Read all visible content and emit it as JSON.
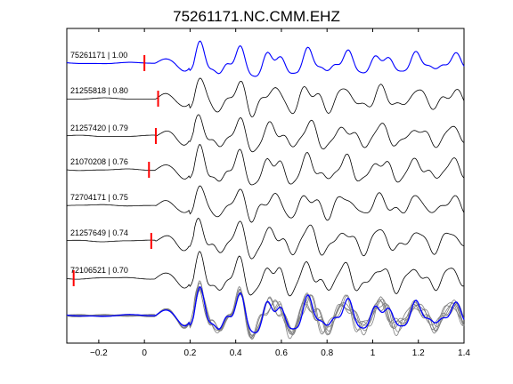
{
  "title": "75261171.NC.CMM.EHZ",
  "chart_data": {
    "type": "line",
    "title": "75261171.NC.CMM.EHZ",
    "xlabel": "",
    "ylabel": "",
    "xlim": [
      -0.34,
      1.4
    ],
    "xticks": [
      -0.2,
      0,
      0.2,
      0.4,
      0.6,
      0.8,
      1,
      1.2,
      1.4
    ],
    "xtick_labels": [
      "−0.2",
      "0",
      "0.2",
      "0.4",
      "0.6",
      "0.8",
      "1",
      "1.2",
      "1.4"
    ],
    "grid": false,
    "series": [
      {
        "name": "75261171 | 1.00",
        "label": "75261171 | 1.00",
        "pick_time": 0.0,
        "color": "#0000ff"
      },
      {
        "name": "21255818 | 0.80",
        "label": "21255818 | 0.80",
        "pick_time": 0.06,
        "color": "#000000"
      },
      {
        "name": "21257420 | 0.79",
        "label": "21257420 | 0.79",
        "pick_time": 0.05,
        "color": "#000000"
      },
      {
        "name": "21070208 | 0.76",
        "label": "21070208 | 0.76",
        "pick_time": 0.02,
        "color": "#000000"
      },
      {
        "name": "72704171 | 0.75",
        "label": "72704171 | 0.75",
        "pick_time": null,
        "color": "#000000"
      },
      {
        "name": "21257649 | 0.74",
        "label": "21257649 | 0.74",
        "pick_time": 0.03,
        "color": "#000000"
      },
      {
        "name": "72106521 | 0.70",
        "label": "72106521 | 0.70",
        "pick_time": -0.31,
        "color": "#000000"
      }
    ],
    "stack": {
      "description": "overlay of all traces",
      "reference_color": "#0000ff",
      "others_color": "#808080"
    },
    "pick_color": "#ff0000"
  }
}
